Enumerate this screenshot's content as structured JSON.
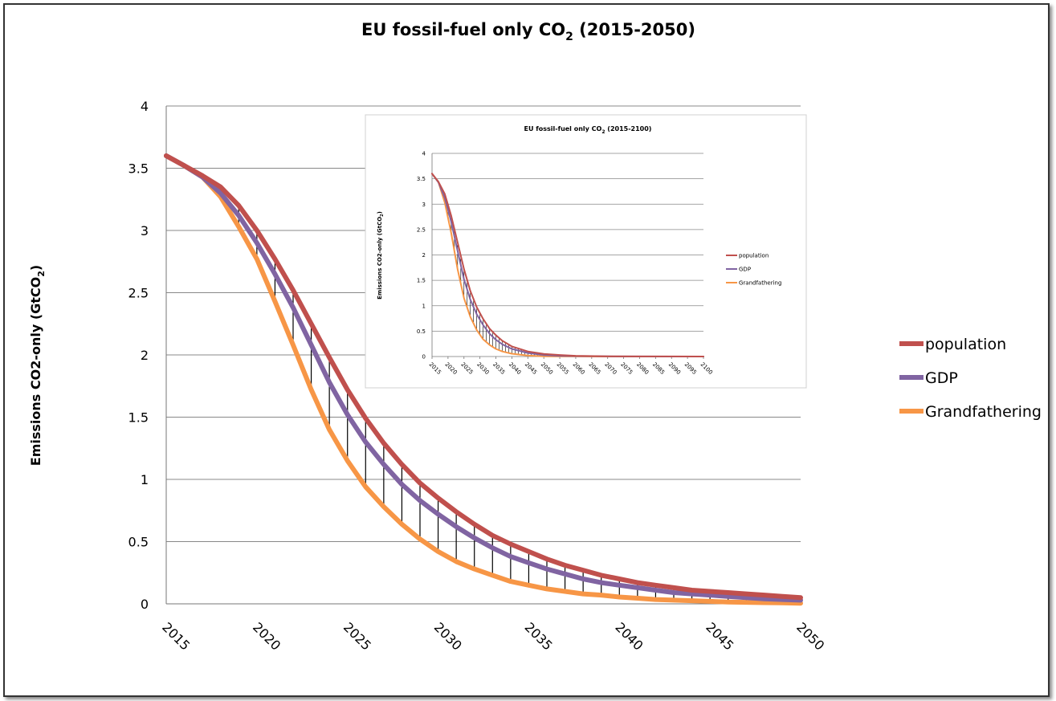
{
  "colors": {
    "population": "#c0504d",
    "gdp": "#8064a2",
    "grandfathering": "#f79646",
    "grid": "#888888",
    "hatch": "#000000"
  },
  "chart_data": [
    {
      "type": "line",
      "title_main": "EU fossil-fuel only CO",
      "title_sub": "2",
      "title_tail": " (2015-2050)",
      "ylabel_main": "Emissions CO2-only (GtCO",
      "ylabel_sub": "2",
      "ylabel_tail": ")",
      "xlabel": "",
      "xlim": [
        2015,
        2050
      ],
      "ylim": [
        0,
        4
      ],
      "grid": true,
      "legend": "right",
      "x_ticks": [
        "2015",
        "2020",
        "2025",
        "2030",
        "2035",
        "2040",
        "2045",
        "2050"
      ],
      "y_ticks": [
        "0",
        "0.5",
        "1",
        "1.5",
        "2",
        "2.5",
        "3",
        "3.5",
        "4"
      ],
      "series": [
        {
          "name": "population",
          "color_key": "population",
          "x": [
            2015,
            2016,
            2017,
            2018,
            2019,
            2020,
            2021,
            2022,
            2023,
            2024,
            2025,
            2026,
            2027,
            2028,
            2029,
            2030,
            2031,
            2032,
            2033,
            2034,
            2035,
            2036,
            2037,
            2038,
            2039,
            2040,
            2041,
            2042,
            2043,
            2044,
            2045,
            2046,
            2047,
            2048,
            2049,
            2050
          ],
          "values": [
            3.6,
            3.52,
            3.44,
            3.35,
            3.2,
            3.0,
            2.77,
            2.52,
            2.25,
            1.98,
            1.72,
            1.49,
            1.29,
            1.12,
            0.97,
            0.85,
            0.74,
            0.64,
            0.55,
            0.48,
            0.42,
            0.36,
            0.31,
            0.27,
            0.23,
            0.2,
            0.17,
            0.15,
            0.13,
            0.11,
            0.1,
            0.09,
            0.08,
            0.07,
            0.06,
            0.05
          ]
        },
        {
          "name": "GDP",
          "color_key": "gdp",
          "x": [
            2015,
            2016,
            2017,
            2018,
            2019,
            2020,
            2021,
            2022,
            2023,
            2024,
            2025,
            2026,
            2027,
            2028,
            2029,
            2030,
            2031,
            2032,
            2033,
            2034,
            2035,
            2036,
            2037,
            2038,
            2039,
            2040,
            2041,
            2042,
            2043,
            2044,
            2045,
            2046,
            2047,
            2048,
            2049,
            2050
          ],
          "values": [
            3.6,
            3.52,
            3.43,
            3.3,
            3.12,
            2.9,
            2.65,
            2.38,
            2.08,
            1.78,
            1.52,
            1.3,
            1.12,
            0.96,
            0.83,
            0.72,
            0.62,
            0.53,
            0.45,
            0.38,
            0.33,
            0.28,
            0.24,
            0.2,
            0.17,
            0.15,
            0.13,
            0.11,
            0.09,
            0.08,
            0.07,
            0.06,
            0.05,
            0.04,
            0.035,
            0.03
          ]
        },
        {
          "name": "Grandfathering",
          "color_key": "grandfathering",
          "x": [
            2015,
            2016,
            2017,
            2018,
            2019,
            2020,
            2021,
            2022,
            2023,
            2024,
            2025,
            2026,
            2027,
            2028,
            2029,
            2030,
            2031,
            2032,
            2033,
            2034,
            2035,
            2036,
            2037,
            2038,
            2039,
            2040,
            2041,
            2042,
            2043,
            2044,
            2045,
            2046,
            2047,
            2048,
            2049,
            2050
          ],
          "values": [
            3.6,
            3.52,
            3.43,
            3.27,
            3.03,
            2.77,
            2.43,
            2.08,
            1.72,
            1.4,
            1.15,
            0.94,
            0.78,
            0.64,
            0.52,
            0.42,
            0.34,
            0.28,
            0.23,
            0.18,
            0.15,
            0.12,
            0.1,
            0.08,
            0.07,
            0.055,
            0.045,
            0.035,
            0.03,
            0.025,
            0.02,
            0.015,
            0.012,
            0.01,
            0.008,
            0.005
          ]
        }
      ]
    },
    {
      "type": "line",
      "title_main": "EU fossil-fuel only CO",
      "title_sub": "2",
      "title_tail": " (2015-2100)",
      "ylabel_main": "Emissions CO2-only (GtCO",
      "ylabel_sub": "2",
      "ylabel_tail": ")",
      "xlim": [
        2015,
        2100
      ],
      "ylim": [
        0,
        4
      ],
      "grid": true,
      "legend": "right",
      "x_ticks": [
        "2015",
        "2020",
        "2025",
        "2030",
        "2035",
        "2040",
        "2045",
        "2050",
        "2055",
        "2060",
        "2065",
        "2070",
        "2075",
        "2080",
        "2085",
        "2090",
        "2095",
        "2100"
      ],
      "y_ticks": [
        "0",
        "0.5",
        "1",
        "1.5",
        "2",
        "2.5",
        "3",
        "3.5",
        "4"
      ],
      "series": [
        {
          "name": "population",
          "color_key": "population",
          "x": [
            2015,
            2017,
            2019,
            2021,
            2023,
            2025,
            2027,
            2029,
            2031,
            2033,
            2035,
            2037,
            2040,
            2045,
            2050,
            2055,
            2060,
            2070,
            2080,
            2090,
            2100
          ],
          "values": [
            3.6,
            3.44,
            3.2,
            2.77,
            2.25,
            1.72,
            1.29,
            0.97,
            0.74,
            0.55,
            0.42,
            0.31,
            0.2,
            0.1,
            0.05,
            0.03,
            0.015,
            0.005,
            0.002,
            0.001,
            0
          ]
        },
        {
          "name": "GDP",
          "color_key": "gdp",
          "x": [
            2015,
            2017,
            2019,
            2021,
            2023,
            2025,
            2027,
            2029,
            2031,
            2033,
            2035,
            2037,
            2040,
            2045,
            2050,
            2055,
            2060,
            2070,
            2080,
            2090,
            2100
          ],
          "values": [
            3.6,
            3.43,
            3.12,
            2.65,
            2.08,
            1.52,
            1.12,
            0.83,
            0.62,
            0.45,
            0.33,
            0.24,
            0.15,
            0.07,
            0.03,
            0.015,
            0.008,
            0.003,
            0.001,
            0,
            0
          ]
        },
        {
          "name": "Grandfathering",
          "color_key": "grandfathering",
          "x": [
            2015,
            2017,
            2019,
            2021,
            2023,
            2025,
            2027,
            2029,
            2031,
            2033,
            2035,
            2037,
            2040,
            2045,
            2050,
            2055,
            2060,
            2070,
            2080,
            2090,
            2100
          ],
          "values": [
            3.6,
            3.43,
            3.03,
            2.43,
            1.72,
            1.15,
            0.78,
            0.52,
            0.34,
            0.23,
            0.15,
            0.1,
            0.055,
            0.02,
            0.005,
            0.002,
            0.001,
            0,
            0,
            0,
            0
          ]
        }
      ]
    }
  ]
}
